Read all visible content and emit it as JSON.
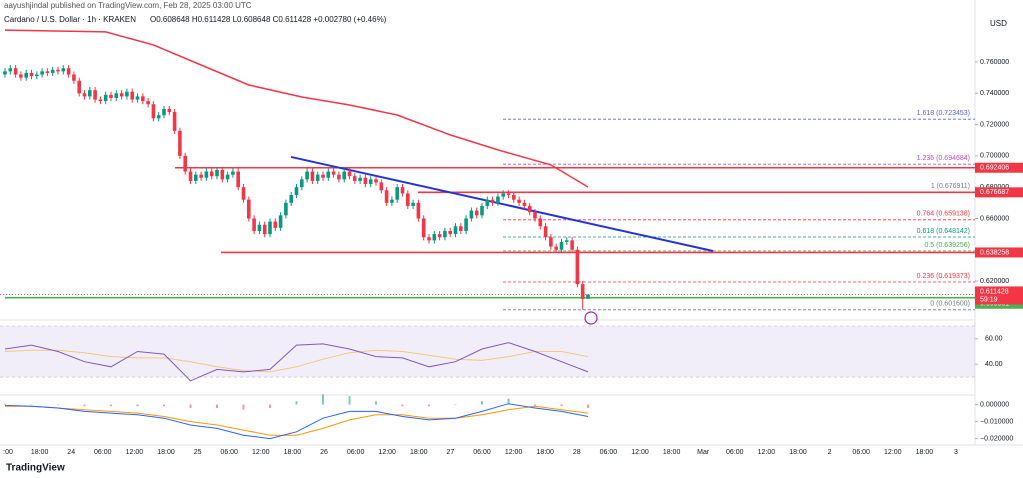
{
  "header": {
    "published": "aayushjindal published on TradingView.com, Feb 28, 2025 03:00 UTC",
    "symbol": "Cardano / U.S. Dollar · 1h · KRAKEN",
    "ohlc_text": "O0.608648 H0.611428 L0.608648 C0.611428 +0.002780 (+0.46%)"
  },
  "footer": "TradingView",
  "chart_data": {
    "type": "candlestick",
    "currency": "USD",
    "up_color": "#089981",
    "down_color": "#f23645",
    "candles": [
      [
        0.752,
        0.756,
        0.75,
        0.754
      ],
      [
        0.754,
        0.758,
        0.752,
        0.756
      ],
      [
        0.756,
        0.758,
        0.75,
        0.752
      ],
      [
        0.752,
        0.754,
        0.748,
        0.75
      ],
      [
        0.75,
        0.755,
        0.748,
        0.753
      ],
      [
        0.753,
        0.755,
        0.749,
        0.751
      ],
      [
        0.751,
        0.754,
        0.749,
        0.752
      ],
      [
        0.752,
        0.756,
        0.75,
        0.754
      ],
      [
        0.754,
        0.756,
        0.751,
        0.753
      ],
      [
        0.753,
        0.757,
        0.751,
        0.755
      ],
      [
        0.755,
        0.757,
        0.752,
        0.754
      ],
      [
        0.754,
        0.758,
        0.752,
        0.756
      ],
      [
        0.756,
        0.758,
        0.75,
        0.752
      ],
      [
        0.752,
        0.754,
        0.746,
        0.748
      ],
      [
        0.748,
        0.75,
        0.738,
        0.74
      ],
      [
        0.74,
        0.742,
        0.736,
        0.738
      ],
      [
        0.738,
        0.744,
        0.736,
        0.742
      ],
      [
        0.742,
        0.744,
        0.734,
        0.736
      ],
      [
        0.736,
        0.738,
        0.733,
        0.735
      ],
      [
        0.735,
        0.741,
        0.733,
        0.739
      ],
      [
        0.739,
        0.741,
        0.735,
        0.737
      ],
      [
        0.737,
        0.742,
        0.735,
        0.74
      ],
      [
        0.74,
        0.742,
        0.736,
        0.738
      ],
      [
        0.738,
        0.743,
        0.736,
        0.741
      ],
      [
        0.741,
        0.743,
        0.734,
        0.736
      ],
      [
        0.736,
        0.74,
        0.734,
        0.738
      ],
      [
        0.738,
        0.74,
        0.733,
        0.735
      ],
      [
        0.735,
        0.737,
        0.731,
        0.733
      ],
      [
        0.733,
        0.735,
        0.722,
        0.724
      ],
      [
        0.724,
        0.728,
        0.722,
        0.726
      ],
      [
        0.726,
        0.732,
        0.724,
        0.73
      ],
      [
        0.73,
        0.732,
        0.726,
        0.728
      ],
      [
        0.728,
        0.73,
        0.714,
        0.716
      ],
      [
        0.716,
        0.718,
        0.698,
        0.7
      ],
      [
        0.7,
        0.702,
        0.688,
        0.69
      ],
      [
        0.69,
        0.692,
        0.682,
        0.684
      ],
      [
        0.684,
        0.69,
        0.682,
        0.688
      ],
      [
        0.688,
        0.69,
        0.684,
        0.686
      ],
      [
        0.686,
        0.692,
        0.684,
        0.69
      ],
      [
        0.69,
        0.692,
        0.685,
        0.687
      ],
      [
        0.687,
        0.693,
        0.685,
        0.691
      ],
      [
        0.691,
        0.693,
        0.683,
        0.685
      ],
      [
        0.685,
        0.69,
        0.683,
        0.688
      ],
      [
        0.688,
        0.692,
        0.686,
        0.69
      ],
      [
        0.69,
        0.692,
        0.678,
        0.68
      ],
      [
        0.68,
        0.682,
        0.67,
        0.672
      ],
      [
        0.672,
        0.674,
        0.658,
        0.66
      ],
      [
        0.66,
        0.662,
        0.65,
        0.652
      ],
      [
        0.652,
        0.658,
        0.65,
        0.656
      ],
      [
        0.656,
        0.658,
        0.648,
        0.65
      ],
      [
        0.65,
        0.66,
        0.648,
        0.658
      ],
      [
        0.658,
        0.66,
        0.652,
        0.654
      ],
      [
        0.654,
        0.664,
        0.652,
        0.662
      ],
      [
        0.662,
        0.672,
        0.66,
        0.67
      ],
      [
        0.67,
        0.677,
        0.668,
        0.675
      ],
      [
        0.675,
        0.682,
        0.673,
        0.68
      ],
      [
        0.68,
        0.687,
        0.678,
        0.685
      ],
      [
        0.685,
        0.692,
        0.683,
        0.69
      ],
      [
        0.69,
        0.692,
        0.682,
        0.684
      ],
      [
        0.684,
        0.69,
        0.682,
        0.688
      ],
      [
        0.688,
        0.69,
        0.684,
        0.686
      ],
      [
        0.686,
        0.692,
        0.684,
        0.69
      ],
      [
        0.69,
        0.692,
        0.686,
        0.688
      ],
      [
        0.688,
        0.69,
        0.683,
        0.685
      ],
      [
        0.685,
        0.692,
        0.683,
        0.69
      ],
      [
        0.69,
        0.692,
        0.685,
        0.687
      ],
      [
        0.687,
        0.689,
        0.682,
        0.684
      ],
      [
        0.684,
        0.688,
        0.682,
        0.686
      ],
      [
        0.686,
        0.688,
        0.68,
        0.682
      ],
      [
        0.682,
        0.687,
        0.68,
        0.685
      ],
      [
        0.685,
        0.687,
        0.681,
        0.683
      ],
      [
        0.683,
        0.685,
        0.676,
        0.678
      ],
      [
        0.678,
        0.68,
        0.668,
        0.67
      ],
      [
        0.67,
        0.674,
        0.668,
        0.672
      ],
      [
        0.672,
        0.682,
        0.67,
        0.68
      ],
      [
        0.68,
        0.682,
        0.674,
        0.676
      ],
      [
        0.676,
        0.678,
        0.666,
        0.668
      ],
      [
        0.668,
        0.672,
        0.666,
        0.67
      ],
      [
        0.67,
        0.672,
        0.658,
        0.66
      ],
      [
        0.66,
        0.662,
        0.646,
        0.648
      ],
      [
        0.648,
        0.65,
        0.644,
        0.646
      ],
      [
        0.646,
        0.652,
        0.644,
        0.65
      ],
      [
        0.65,
        0.652,
        0.646,
        0.648
      ],
      [
        0.648,
        0.654,
        0.646,
        0.652
      ],
      [
        0.652,
        0.654,
        0.648,
        0.65
      ],
      [
        0.65,
        0.657,
        0.648,
        0.655
      ],
      [
        0.655,
        0.657,
        0.65,
        0.652
      ],
      [
        0.652,
        0.662,
        0.65,
        0.66
      ],
      [
        0.66,
        0.667,
        0.658,
        0.665
      ],
      [
        0.665,
        0.667,
        0.66,
        0.662
      ],
      [
        0.662,
        0.67,
        0.66,
        0.668
      ],
      [
        0.668,
        0.674,
        0.666,
        0.672
      ],
      [
        0.672,
        0.674,
        0.668,
        0.67
      ],
      [
        0.67,
        0.676,
        0.668,
        0.674
      ],
      [
        0.674,
        0.678,
        0.672,
        0.676
      ],
      [
        0.676,
        0.678,
        0.673,
        0.675
      ],
      [
        0.675,
        0.677,
        0.67,
        0.672
      ],
      [
        0.672,
        0.674,
        0.668,
        0.67
      ],
      [
        0.67,
        0.672,
        0.666,
        0.668
      ],
      [
        0.668,
        0.67,
        0.662,
        0.664
      ],
      [
        0.664,
        0.666,
        0.658,
        0.66
      ],
      [
        0.66,
        0.662,
        0.653,
        0.655
      ],
      [
        0.655,
        0.657,
        0.646,
        0.648
      ],
      [
        0.648,
        0.65,
        0.64,
        0.642
      ],
      [
        0.642,
        0.644,
        0.638,
        0.64
      ],
      [
        0.64,
        0.647,
        0.638,
        0.645
      ],
      [
        0.645,
        0.648,
        0.643,
        0.646
      ],
      [
        0.646,
        0.648,
        0.638,
        0.64
      ],
      [
        0.64,
        0.642,
        0.616,
        0.618
      ],
      [
        0.618,
        0.62,
        0.6016,
        0.6086
      ],
      [
        0.608648,
        0.611428,
        0.608648,
        0.611428
      ]
    ],
    "ylim": [
      0.5951,
      0.7945
    ],
    "yticks": [
      {
        "value": 0.76,
        "label": "0.760000"
      },
      {
        "value": 0.74,
        "label": "0.740000"
      },
      {
        "value": 0.72,
        "label": "0.720000"
      },
      {
        "value": 0.7,
        "label": "0.700000"
      },
      {
        "value": 0.68,
        "label": "0.680000"
      },
      {
        "value": 0.66,
        "label": "0.660000"
      },
      {
        "value": 0.62,
        "label": "0.620000"
      }
    ],
    "time_labels": [
      ":00",
      "18:00",
      "24",
      "06:00",
      "12:00",
      "18:00",
      "25",
      "06:00",
      "12:00",
      "18:00",
      "26",
      "06:00",
      "12:00",
      "18:00",
      "27",
      "06:00",
      "12:00",
      "18:00",
      "28",
      "06:00",
      "12:00",
      "18:00",
      "Mar",
      "06:00",
      "12:00",
      "18:00",
      "2",
      "06:00",
      "12:00",
      "18:00",
      "3"
    ],
    "ma": {
      "color": "#f23645",
      "x": [
        0,
        19,
        28,
        37,
        46,
        56,
        65,
        74,
        84,
        93,
        103,
        110
      ],
      "values": [
        0.7804,
        0.7792,
        0.7709,
        0.7581,
        0.7453,
        0.7376,
        0.7325,
        0.7261,
        0.7134,
        0.7038,
        0.6942,
        0.6801
      ]
    },
    "trendline": {
      "color": "#2433d6",
      "values": [
        0.6993,
        0.6392
      ]
    },
    "levels": [
      {
        "value": 0.692406,
        "label": "0.692406",
        "color": "#f23645"
      },
      {
        "value": 0.676687,
        "label": "0.676687",
        "color": "#f23645"
      },
      {
        "value": 0.638258,
        "label": "0.638258",
        "color": "#f23645"
      },
      {
        "value": 0.609331,
        "label": "0.609331",
        "color": "#4caf50"
      }
    ],
    "fib": [
      {
        "value": 0.723453,
        "label": "1.618 (0.723453)",
        "color": "#5d60e0"
      },
      {
        "value": 0.694684,
        "label": "1.236 (0.694684)",
        "color": "#c050c0"
      },
      {
        "value": 0.676911,
        "label": "1 (0.676911)",
        "color": "#787b86"
      },
      {
        "value": 0.659138,
        "label": "0.764 (0.659138)",
        "color": "#f23645"
      },
      {
        "value": 0.648142,
        "label": "0.618 (0.648142)",
        "color": "#089981"
      },
      {
        "value": 0.639256,
        "label": "0.5 (0.639256)",
        "color": "#4caf50"
      },
      {
        "value": 0.619373,
        "label": "0.236 (0.619373)",
        "color": "#f23645"
      },
      {
        "value": 0.6016,
        "label": "0 (0.601600)",
        "color": "#787b86"
      }
    ],
    "last_price": {
      "value": 0.611428,
      "label": "0.611428",
      "countdown": "59:19",
      "color": "#f23645"
    },
    "rsi": {
      "ylim": [
        15.9,
        74.7
      ],
      "band": [
        30,
        70
      ],
      "yticks": [
        {
          "value": 60,
          "label": "60.00"
        },
        {
          "value": 40,
          "label": "40.00"
        }
      ],
      "x": [
        0,
        5,
        10,
        15,
        20,
        25,
        30,
        35,
        40,
        45,
        50,
        55,
        60,
        65,
        70,
        75,
        80,
        85,
        90,
        95,
        100,
        105,
        110
      ],
      "values": [
        52,
        55,
        50,
        42,
        38,
        50,
        48,
        27,
        36,
        34,
        36,
        55,
        56,
        52,
        46,
        45,
        38,
        42,
        52,
        57,
        50,
        42,
        34
      ],
      "signal": [
        50,
        51,
        51,
        49,
        46,
        45,
        45,
        42,
        38,
        35,
        34,
        38,
        44,
        49,
        51,
        50,
        47,
        44,
        43,
        46,
        50,
        50,
        46
      ],
      "color": "#7e57c2",
      "signal_color": "#f5c77e"
    },
    "macd": {
      "ylim": [
        -0.02375,
        0.005625
      ],
      "yticks": [
        {
          "value": 0,
          "label": "0.000000"
        },
        {
          "value": -0.01,
          "label": "−0.010000"
        },
        {
          "value": -0.02,
          "label": "−0.020000"
        }
      ],
      "x": [
        0,
        5,
        10,
        15,
        20,
        25,
        30,
        35,
        40,
        45,
        50,
        55,
        60,
        65,
        70,
        75,
        80,
        85,
        90,
        95,
        100,
        105,
        110
      ],
      "values": [
        -0.0005,
        -0.001,
        -0.002,
        -0.004,
        -0.005,
        -0.006,
        -0.008,
        -0.012,
        -0.014,
        -0.018,
        -0.02,
        -0.016,
        -0.008,
        -0.004,
        -0.004,
        -0.007,
        -0.009,
        -0.008,
        -0.004,
        0.0005,
        -0.002,
        -0.004,
        -0.007
      ],
      "signal": [
        -0.001,
        -0.001,
        -0.002,
        -0.003,
        -0.004,
        -0.005,
        -0.007,
        -0.01,
        -0.012,
        -0.015,
        -0.018,
        -0.018,
        -0.014,
        -0.009,
        -0.006,
        -0.006,
        -0.008,
        -0.008,
        -0.006,
        -0.003,
        -0.001,
        -0.003,
        -0.005
      ],
      "hist": [
        0.0005,
        0,
        0,
        -0.001,
        -0.001,
        -0.001,
        -0.001,
        -0.002,
        -0.002,
        -0.003,
        -0.002,
        0.002,
        0.006,
        0.005,
        0.002,
        -0.001,
        -0.001,
        0,
        0.002,
        0.0035,
        -0.001,
        -0.001,
        -0.002
      ],
      "color": "#2962ff",
      "signal_color": "#ff9800"
    }
  }
}
